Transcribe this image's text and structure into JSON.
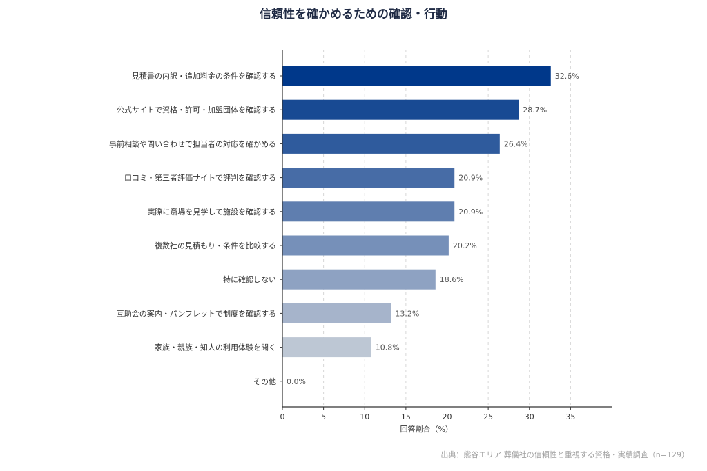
{
  "chart_data": {
    "type": "bar",
    "orientation": "horizontal",
    "title": "信頼性を確かめるための確認・行動",
    "xlabel": "回答割合（%）",
    "ylabel": "",
    "categories": [
      "見積書の内訳・追加料金の条件を確認する",
      "公式サイトで資格・許可・加盟団体を確認する",
      "事前相談や問い合わせで担当者の対応を確かめる",
      "口コミ・第三者評価サイトで評判を確認する",
      "実際に斎場を見学して施設を確認する",
      "複数社の見積もり・条件を比較する",
      "特に確認しない",
      "互助会の案内・パンフレットで制度を確認する",
      "家族・親族・知人の利用体験を聞く",
      "その他"
    ],
    "values": [
      32.6,
      28.7,
      26.4,
      20.9,
      20.9,
      20.2,
      18.6,
      13.2,
      10.8,
      0.0
    ],
    "value_labels": [
      "32.6%",
      "28.7%",
      "26.4%",
      "20.9%",
      "20.9%",
      "20.2%",
      "18.6%",
      "13.2%",
      "10.8%",
      "0.0%"
    ],
    "colors": [
      "#00388a",
      "#184a93",
      "#2f5b9d",
      "#476ca6",
      "#5f7eaf",
      "#7690b9",
      "#8ea2c2",
      "#a6b4cb",
      "#bdc7d4",
      "#d5d9df"
    ],
    "xlim": [
      0,
      40
    ],
    "xticks": [
      "0",
      "5",
      "10",
      "15",
      "20",
      "25",
      "30",
      "35"
    ],
    "grid": "vertical dashed",
    "source": "出典：熊谷エリア 葬儀社の信頼性と重視する資格・実績調査（n=129）"
  }
}
